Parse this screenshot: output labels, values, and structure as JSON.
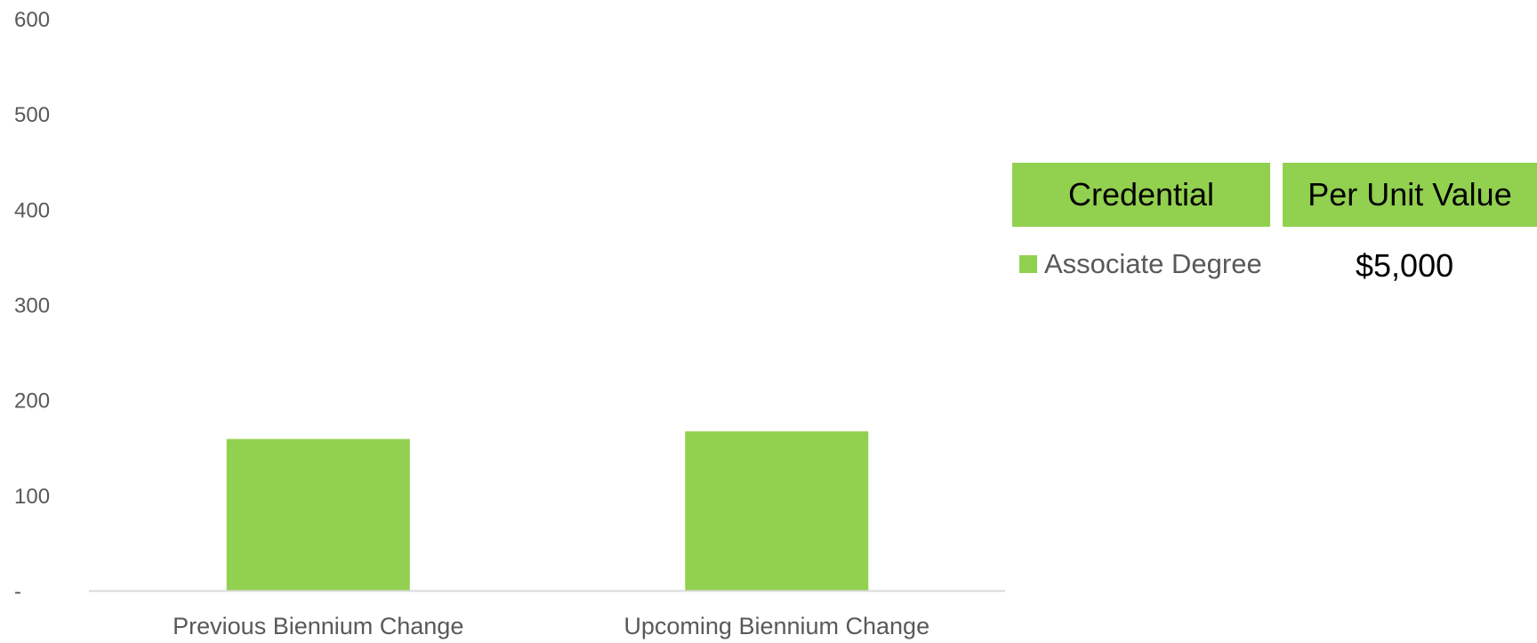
{
  "chart_data": {
    "type": "bar",
    "categories": [
      "Previous Biennium Change",
      "Upcoming Biennium Change"
    ],
    "series": [
      {
        "name": "Associate Degree",
        "values": [
          159,
          167
        ],
        "color": "#92d050"
      }
    ],
    "ylim": [
      0,
      600
    ],
    "yticks": [
      0,
      100,
      200,
      300,
      400,
      500,
      600
    ],
    "ytick_labels": [
      "-",
      "100",
      "200",
      "300",
      "400",
      "500",
      "600"
    ],
    "grid": false,
    "legend_placement": "right"
  },
  "legend_table": {
    "header_credential": "Credential",
    "header_value": "Per Unit Value",
    "rows": [
      {
        "label": "Associate Degree",
        "value": "$5,000",
        "color": "#92d050"
      }
    ]
  }
}
